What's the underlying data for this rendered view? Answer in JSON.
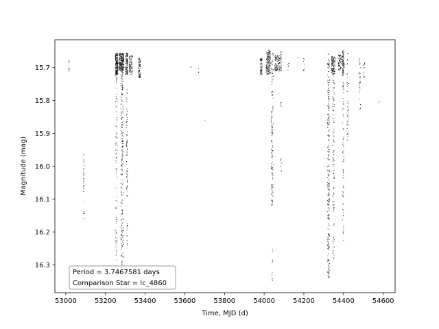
{
  "chart_data": {
    "type": "scatter",
    "title": "",
    "xlabel": "Time, MJD (d)",
    "ylabel": "Magnitude (mag)",
    "xlim": [
      52945,
      54660
    ],
    "ylim": [
      16.385,
      15.615
    ],
    "y_inverted": true,
    "grid": false,
    "xticks": [
      53000,
      53200,
      53400,
      53600,
      53800,
      54000,
      54200,
      54400,
      54600
    ],
    "yticks": [
      15.7,
      15.8,
      15.9,
      16.0,
      16.1,
      16.2,
      16.3
    ],
    "xtick_labels": [
      "53000",
      "53200",
      "53400",
      "53600",
      "53800",
      "54000",
      "54200",
      "54400",
      "54600"
    ],
    "ytick_labels": [
      "15.7",
      "15.8",
      "15.9",
      "16.0",
      "16.1",
      "16.2",
      "16.3"
    ],
    "marker_color": "#000000",
    "annotation": {
      "lines": [
        "Period = 3.7467581 days",
        "Comparison Star = lc_4860"
      ],
      "placement": "lower-left"
    },
    "clusters": [
      {
        "x": 53015,
        "y_min": 15.67,
        "y_max": 15.71,
        "n": 10
      },
      {
        "x_min": 53086,
        "x_max": 53092,
        "y_min": 15.96,
        "y_max": 16.17,
        "n": 30
      },
      {
        "x_min": 53248,
        "x_max": 53262,
        "y_min": 15.655,
        "y_max": 15.72,
        "n": 180
      },
      {
        "x_min": 53249,
        "x_max": 53258,
        "y_min": 15.72,
        "y_max": 16.33,
        "n": 90
      },
      {
        "x_min": 53268,
        "x_max": 53292,
        "y_min": 15.655,
        "y_max": 15.71,
        "n": 220
      },
      {
        "x_min": 53276,
        "x_max": 53288,
        "y_min": 15.71,
        "y_max": 16.36,
        "n": 240
      },
      {
        "x_min": 53300,
        "x_max": 53312,
        "y_min": 15.655,
        "y_max": 15.72,
        "n": 110
      },
      {
        "x_min": 53304,
        "x_max": 53310,
        "y_min": 15.76,
        "y_max": 16.11,
        "n": 70
      },
      {
        "x_min": 53306,
        "x_max": 53310,
        "y_min": 16.16,
        "y_max": 16.24,
        "n": 12
      },
      {
        "x_min": 53318,
        "x_max": 53335,
        "y_min": 15.66,
        "y_max": 15.72,
        "n": 80
      },
      {
        "x_min": 53365,
        "x_max": 53375,
        "y_min": 15.67,
        "y_max": 15.73,
        "n": 80
      },
      {
        "x": 53630,
        "y_min": 15.69,
        "y_max": 15.7,
        "n": 2
      },
      {
        "x": 53668,
        "y_min": 15.69,
        "y_max": 15.72,
        "n": 3
      },
      {
        "x": 53700,
        "y_min": 15.86,
        "y_max": 15.865,
        "n": 1
      },
      {
        "x_min": 53978,
        "x_max": 53988,
        "y_min": 15.67,
        "y_max": 15.72,
        "n": 60
      },
      {
        "x_min": 54008,
        "x_max": 54030,
        "y_min": 15.645,
        "y_max": 15.72,
        "n": 150
      },
      {
        "x_min": 54034,
        "x_max": 54044,
        "y_min": 15.655,
        "y_max": 16.12,
        "n": 140
      },
      {
        "x_min": 54036,
        "x_max": 54042,
        "y_min": 16.25,
        "y_max": 16.35,
        "n": 12
      },
      {
        "x_min": 54052,
        "x_max": 54078,
        "y_min": 15.66,
        "y_max": 15.71,
        "n": 90
      },
      {
        "x_min": 54080,
        "x_max": 54088,
        "y_min": 15.65,
        "y_max": 15.71,
        "n": 30
      },
      {
        "x_min": 54080,
        "x_max": 54086,
        "y_min": 15.8,
        "y_max": 15.82,
        "n": 5
      },
      {
        "x_min": 54080,
        "x_max": 54086,
        "y_min": 15.97,
        "y_max": 16.02,
        "n": 8
      },
      {
        "x_min": 54118,
        "x_max": 54124,
        "y_min": 15.68,
        "y_max": 15.71,
        "n": 6
      },
      {
        "x": 54168,
        "y_min": 15.665,
        "y_max": 15.67,
        "n": 2
      },
      {
        "x_min": 54195,
        "x_max": 54202,
        "y_min": 15.67,
        "y_max": 15.71,
        "n": 8
      },
      {
        "x_min": 54318,
        "x_max": 54328,
        "y_min": 15.655,
        "y_max": 16.34,
        "n": 260
      },
      {
        "x_min": 54338,
        "x_max": 54356,
        "y_min": 15.665,
        "y_max": 15.72,
        "n": 120
      },
      {
        "x_min": 54344,
        "x_max": 54352,
        "y_min": 15.72,
        "y_max": 16.28,
        "n": 110
      },
      {
        "x_min": 54372,
        "x_max": 54388,
        "y_min": 15.66,
        "y_max": 15.71,
        "n": 60
      },
      {
        "x_min": 54392,
        "x_max": 54402,
        "y_min": 15.645,
        "y_max": 15.72,
        "n": 80
      },
      {
        "x_min": 54394,
        "x_max": 54400,
        "y_min": 15.72,
        "y_max": 16.23,
        "n": 70
      },
      {
        "x_min": 54416,
        "x_max": 54424,
        "y_min": 15.65,
        "y_max": 15.92,
        "n": 45
      },
      {
        "x_min": 54476,
        "x_max": 54484,
        "y_min": 15.67,
        "y_max": 15.83,
        "n": 30
      },
      {
        "x_min": 54498,
        "x_max": 54506,
        "y_min": 15.68,
        "y_max": 15.73,
        "n": 12
      },
      {
        "x": 54578,
        "y_min": 15.795,
        "y_max": 15.805,
        "n": 2
      }
    ]
  }
}
